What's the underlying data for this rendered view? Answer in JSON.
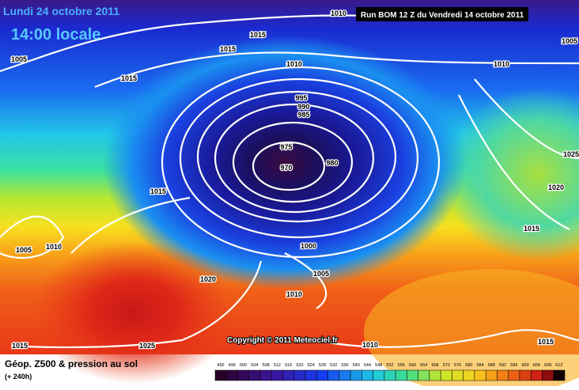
{
  "header": {
    "date": "Lundi 24 octobre 2011",
    "time": "14:00 locale",
    "run": "Run BOM 12 Z du Vendredi 14 octobre 2011"
  },
  "isobar_labels": [
    1010,
    1015,
    1015,
    1005,
    1015,
    1010,
    1010,
    1005,
    995,
    990,
    985,
    975,
    970,
    980,
    1025,
    1020,
    1015,
    1015,
    1005,
    1010,
    1000,
    1005,
    1010,
    1020,
    1015,
    1025,
    1010,
    1015
  ],
  "copyright": "Copyright © 2011 Meteociel.fr",
  "legend": {
    "title": "Géop. Z500 & pression au sol",
    "lead": "(+ 240h)",
    "scale": [
      492,
      496,
      500,
      504,
      508,
      512,
      516,
      520,
      524,
      528,
      532,
      536,
      540,
      544,
      548,
      552,
      556,
      560,
      564,
      568,
      572,
      576,
      580,
      584,
      588,
      592,
      596,
      600,
      604,
      608,
      612
    ]
  }
}
